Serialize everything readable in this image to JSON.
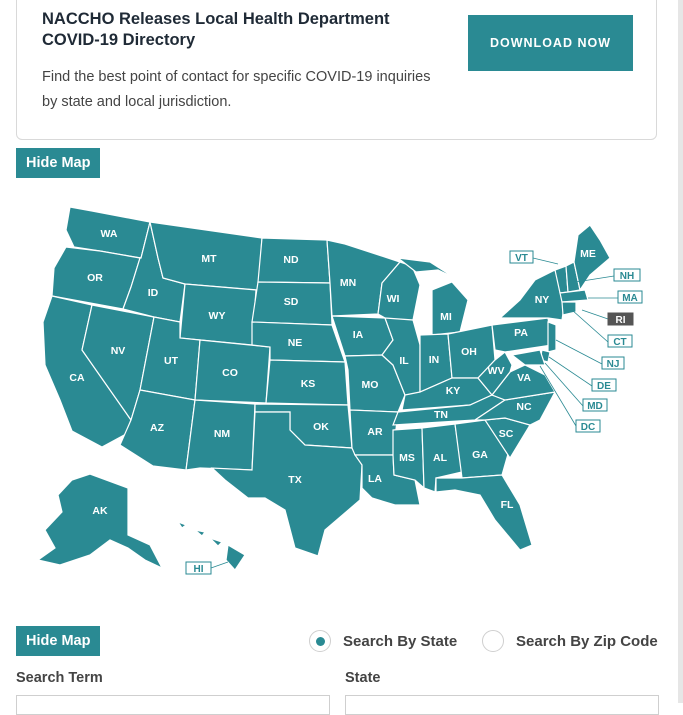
{
  "card": {
    "title": "NACCHO Releases Local Health Department COVID-19 Directory",
    "description": "Find the best point of contact for specific COVID-19 inquiries by state and local jurisdiction.",
    "download_label": "DOWNLOAD NOW"
  },
  "hide_map_label": "Hide Map",
  "map": {
    "states": [
      "WA",
      "OR",
      "CA",
      "NV",
      "ID",
      "MT",
      "WY",
      "UT",
      "AZ",
      "CO",
      "NM",
      "ND",
      "SD",
      "NE",
      "KS",
      "OK",
      "TX",
      "MN",
      "IA",
      "MO",
      "AR",
      "LA",
      "WI",
      "IL",
      "MI",
      "IN",
      "OH",
      "KY",
      "TN",
      "MS",
      "AL",
      "GA",
      "FL",
      "SC",
      "NC",
      "VA",
      "WV",
      "PA",
      "NY",
      "ME",
      "AK",
      "HI"
    ],
    "callouts": [
      "VT",
      "NH",
      "MA",
      "RI",
      "CT",
      "NJ",
      "DE",
      "MD",
      "DC"
    ],
    "highlighted_callout": "RI",
    "fill_color": "#2a8a93"
  },
  "search": {
    "option_state": "Search By State",
    "option_zip": "Search By Zip Code",
    "selected": "state",
    "search_term_label": "Search Term",
    "state_label": "State"
  },
  "colors": {
    "accent": "#2a8a93",
    "highlight": "#555555"
  }
}
